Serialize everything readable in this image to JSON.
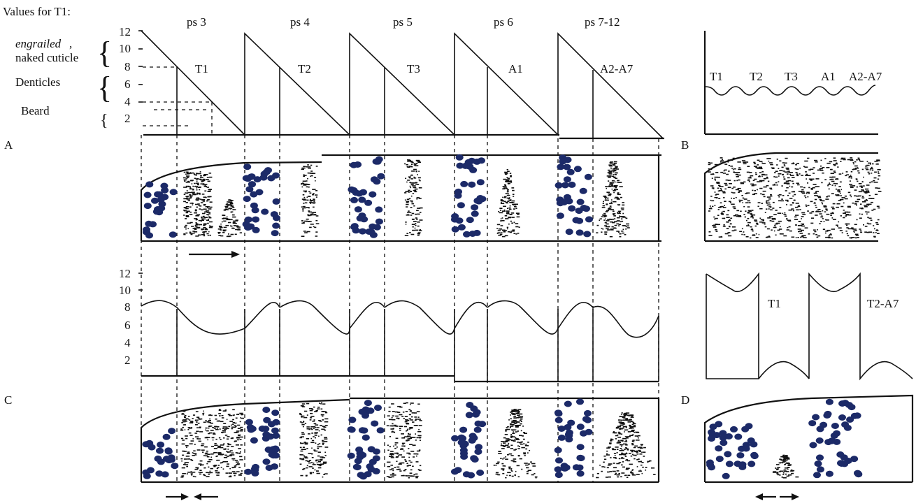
{
  "header": {
    "values_for": "Values for T1:"
  },
  "left_labels": {
    "engrailed_italic": "engrailed",
    "engrailed_rest": ",",
    "naked_cuticle": "naked cuticle",
    "denticles": "Denticles",
    "beard": "Beard"
  },
  "panel_letters": [
    "A",
    "B",
    "C",
    "D"
  ],
  "panel_A": {
    "y_ticks": [
      "12",
      "10",
      "8",
      "6",
      "4",
      "2"
    ],
    "segment_headers": [
      "ps 3",
      "ps 4",
      "ps 5",
      "ps 6",
      "ps 7-12"
    ],
    "segment_labels": [
      "T1",
      "T2",
      "T3",
      "A1",
      "A2-A7"
    ]
  },
  "panel_B": {
    "segment_labels": [
      "T1",
      "T2",
      "T3",
      "A1",
      "A2-A7"
    ]
  },
  "panel_C": {
    "y_ticks": [
      "12",
      "10",
      "8",
      "6",
      "4",
      "2"
    ]
  },
  "panel_D": {
    "segment_labels": [
      "T1",
      "T2-A7"
    ]
  },
  "colors": {
    "dots": "#1c2a68",
    "lines": "#111111"
  }
}
